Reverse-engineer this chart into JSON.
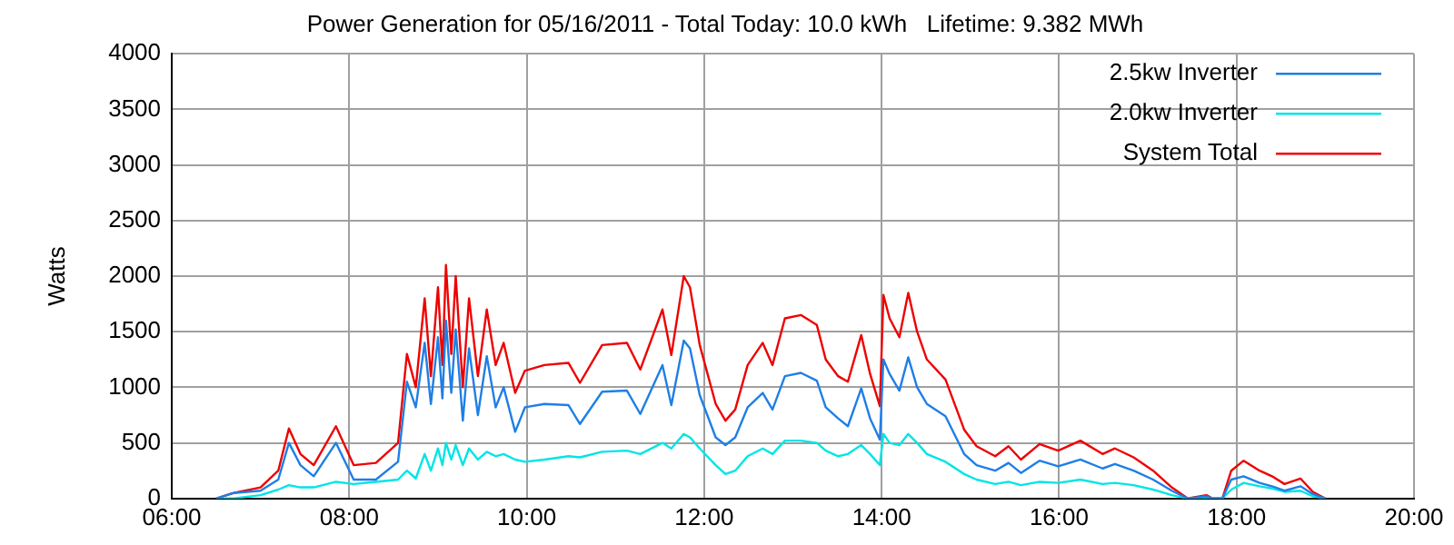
{
  "chart_data": {
    "type": "line",
    "title": "Power Generation for 05/16/2011 - Total Today: 10.0 kWh   Lifetime: 9.382 MWh",
    "ylabel": "Watts",
    "x": [
      6.5,
      6.7,
      7.0,
      7.2,
      7.32,
      7.45,
      7.6,
      7.85,
      8.05,
      8.3,
      8.55,
      8.65,
      8.75,
      8.85,
      8.92,
      9.0,
      9.05,
      9.09,
      9.15,
      9.2,
      9.28,
      9.35,
      9.45,
      9.55,
      9.65,
      9.74,
      9.87,
      9.98,
      10.2,
      10.47,
      10.6,
      10.85,
      11.13,
      11.28,
      11.53,
      11.63,
      11.77,
      11.84,
      11.95,
      12.13,
      12.24,
      12.35,
      12.49,
      12.66,
      12.77,
      12.91,
      13.09,
      13.27,
      13.37,
      13.51,
      13.62,
      13.77,
      13.87,
      13.98,
      14.02,
      14.09,
      14.2,
      14.3,
      14.4,
      14.51,
      14.72,
      14.93,
      15.07,
      15.28,
      15.43,
      15.57,
      15.78,
      15.99,
      16.24,
      16.49,
      16.63,
      16.84,
      17.06,
      17.27,
      17.45,
      17.66,
      17.73,
      17.84,
      17.94,
      18.08,
      18.26,
      18.4,
      18.54,
      18.72,
      18.86,
      19.0
    ],
    "series": [
      {
        "name": "2.5kw Inverter",
        "color": "#1e7fe6",
        "values": [
          0,
          50,
          70,
          170,
          500,
          300,
          200,
          500,
          170,
          170,
          330,
          1050,
          820,
          1400,
          850,
          1450,
          900,
          1600,
          950,
          1520,
          700,
          1350,
          750,
          1280,
          820,
          1000,
          600,
          820,
          850,
          840,
          670,
          960,
          970,
          760,
          1200,
          840,
          1420,
          1350,
          930,
          550,
          480,
          550,
          820,
          950,
          800,
          1100,
          1130,
          1060,
          820,
          720,
          650,
          990,
          720,
          530,
          1250,
          1120,
          970,
          1270,
          1000,
          850,
          740,
          400,
          300,
          250,
          320,
          230,
          340,
          290,
          350,
          270,
          310,
          250,
          170,
          70,
          0,
          20,
          0,
          0,
          170,
          200,
          140,
          110,
          70,
          110,
          40,
          0
        ]
      },
      {
        "name": "2.0kw Inverter",
        "color": "#00e5e5",
        "values": [
          0,
          0,
          30,
          80,
          120,
          100,
          100,
          150,
          130,
          150,
          170,
          250,
          180,
          400,
          250,
          450,
          300,
          500,
          350,
          480,
          300,
          450,
          350,
          420,
          380,
          400,
          350,
          330,
          350,
          380,
          370,
          420,
          430,
          400,
          500,
          450,
          580,
          550,
          450,
          300,
          220,
          250,
          380,
          450,
          400,
          520,
          520,
          500,
          430,
          380,
          400,
          480,
          400,
          300,
          580,
          500,
          480,
          580,
          500,
          400,
          330,
          220,
          170,
          130,
          150,
          120,
          150,
          140,
          170,
          130,
          140,
          120,
          80,
          30,
          0,
          10,
          0,
          0,
          80,
          140,
          110,
          90,
          60,
          70,
          20,
          0
        ]
      },
      {
        "name": "System Total",
        "color": "#ee0000",
        "values": [
          0,
          50,
          100,
          250,
          630,
          400,
          300,
          650,
          300,
          320,
          500,
          1300,
          1000,
          1800,
          1100,
          1900,
          1200,
          2100,
          1300,
          2000,
          1000,
          1800,
          1100,
          1700,
          1200,
          1400,
          950,
          1150,
          1200,
          1220,
          1040,
          1380,
          1400,
          1160,
          1700,
          1290,
          2000,
          1900,
          1380,
          850,
          700,
          800,
          1200,
          1400,
          1200,
          1620,
          1650,
          1560,
          1250,
          1100,
          1050,
          1470,
          1120,
          830,
          1830,
          1620,
          1450,
          1850,
          1500,
          1250,
          1070,
          620,
          470,
          380,
          470,
          350,
          490,
          430,
          520,
          400,
          450,
          370,
          250,
          100,
          0,
          30,
          0,
          0,
          250,
          340,
          250,
          200,
          130,
          180,
          60,
          0
        ]
      }
    ],
    "xlim": [
      6,
      20
    ],
    "xticks": [
      {
        "value": 6,
        "label": "06:00"
      },
      {
        "value": 8,
        "label": "08:00"
      },
      {
        "value": 10,
        "label": "10:00"
      },
      {
        "value": 12,
        "label": "12:00"
      },
      {
        "value": 14,
        "label": "14:00"
      },
      {
        "value": 16,
        "label": "16:00"
      },
      {
        "value": 18,
        "label": "18:00"
      },
      {
        "value": 20,
        "label": "20:00"
      }
    ],
    "ylim": [
      0,
      4000
    ],
    "yticks": [
      0,
      500,
      1000,
      1500,
      2000,
      2500,
      3000,
      3500,
      4000
    ],
    "grid": true,
    "legend": "top right",
    "marker": "none",
    "line_style": "solid"
  }
}
